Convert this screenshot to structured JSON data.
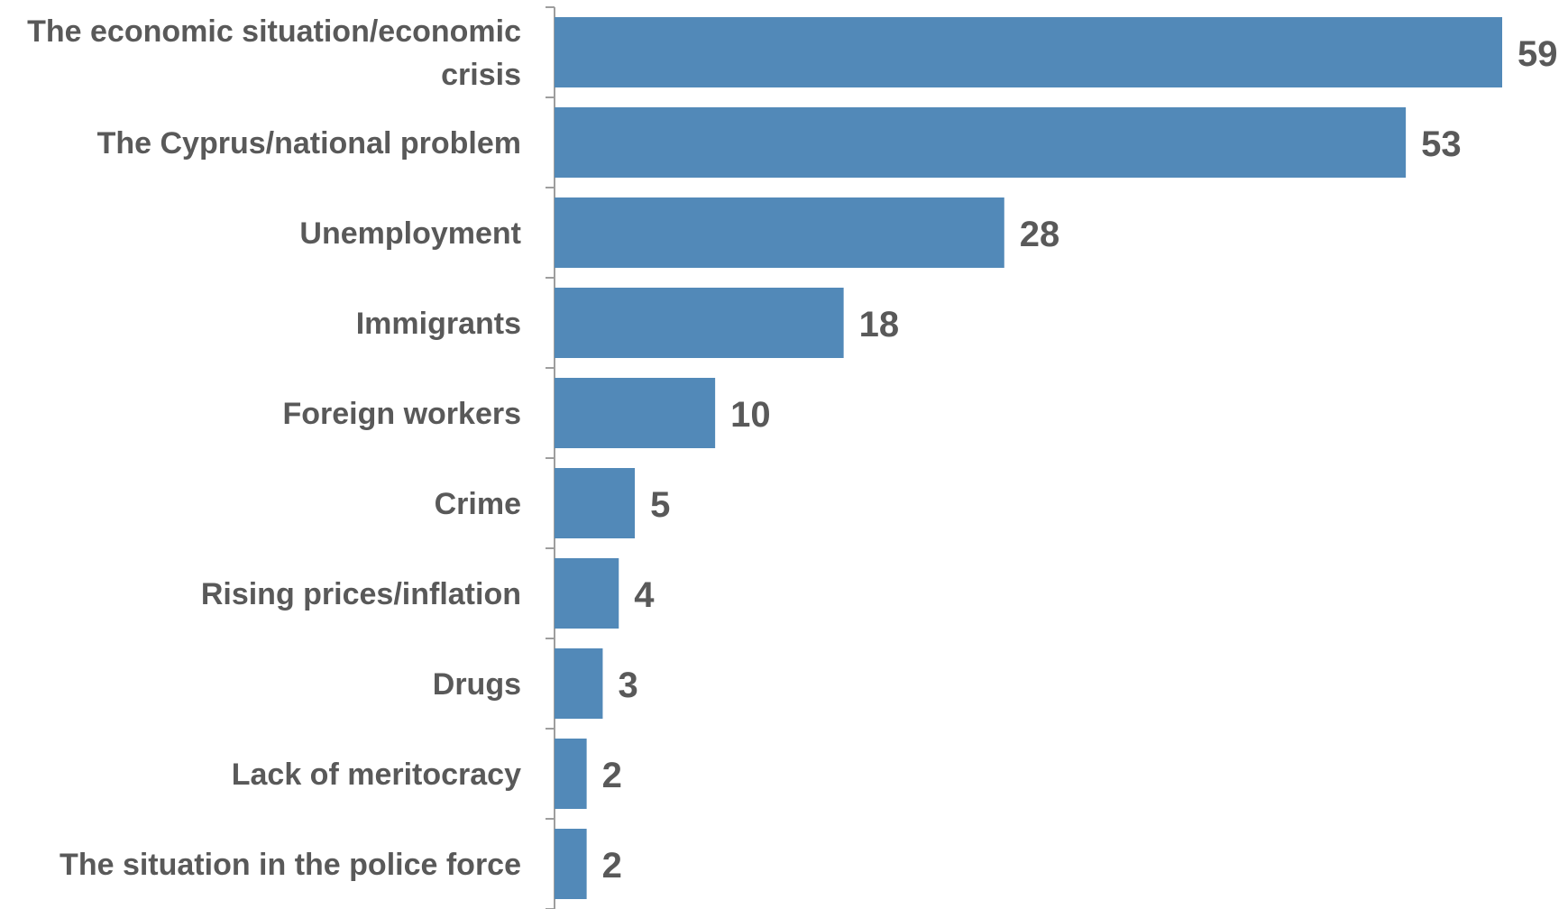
{
  "chart_data": {
    "type": "bar",
    "orientation": "horizontal",
    "title": "",
    "xlabel": "",
    "ylabel": "",
    "categories": [
      "The economic situation/economic crisis",
      "The Cyprus/national problem",
      "Unemployment",
      "Immigrants",
      "Foreign workers",
      "Crime",
      "Rising prices/inflation",
      "Drugs",
      "Lack of meritocracy",
      "The situation in the police force"
    ],
    "category_lines": [
      [
        "The economic situation/economic",
        "crisis"
      ],
      [
        "The Cyprus/national problem"
      ],
      [
        "Unemployment"
      ],
      [
        "Immigrants"
      ],
      [
        "Foreign workers"
      ],
      [
        "Crime"
      ],
      [
        "Rising prices/inflation"
      ],
      [
        "Drugs"
      ],
      [
        "Lack of meritocracy"
      ],
      [
        "The situation in the police force"
      ]
    ],
    "values": [
      59,
      53,
      28,
      18,
      10,
      5,
      4,
      3,
      2,
      2
    ],
    "xlim": [
      0,
      60
    ],
    "grid": false,
    "legend": "none",
    "data_labels": true,
    "colors": {
      "bar": "#5289b8",
      "text": "#595959",
      "axis": "#9e9e9e"
    }
  }
}
